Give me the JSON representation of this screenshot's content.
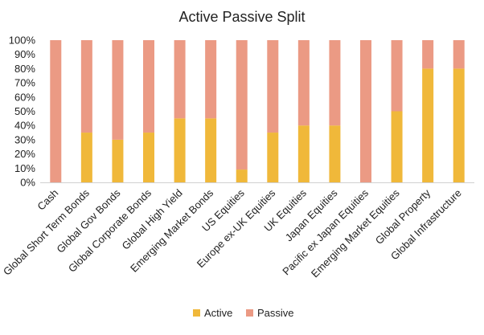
{
  "chart_data": {
    "type": "bar",
    "stacked": true,
    "title": "Active Passive Split",
    "categories": [
      "Cash",
      "Global Short Term Bonds",
      "Global Gov Bonds",
      "Global Corporate Bonds",
      "Global High Yield",
      "Emerging Market Bonds",
      "US Equities",
      "Europe ex-UK Equities",
      "UK Equities",
      "Japan Equities",
      "Pacific ex Japan Equities",
      "Emerging Market Equities",
      "Global Property",
      "Global Infrastructure"
    ],
    "series": [
      {
        "name": "Active",
        "color": "#F0B83A",
        "values": [
          0,
          35,
          30,
          35,
          45,
          45,
          9,
          35,
          40,
          40,
          0,
          50,
          80,
          80
        ]
      },
      {
        "name": "Passive",
        "color": "#EB9A84",
        "values": [
          100,
          65,
          70,
          65,
          55,
          55,
          91,
          65,
          60,
          60,
          100,
          50,
          20,
          20
        ]
      }
    ],
    "ylim": [
      0,
      100
    ],
    "yticks": [
      "0%",
      "10%",
      "20%",
      "30%",
      "40%",
      "50%",
      "60%",
      "70%",
      "80%",
      "90%",
      "100%"
    ],
    "grid": false,
    "legend": "bottom"
  }
}
